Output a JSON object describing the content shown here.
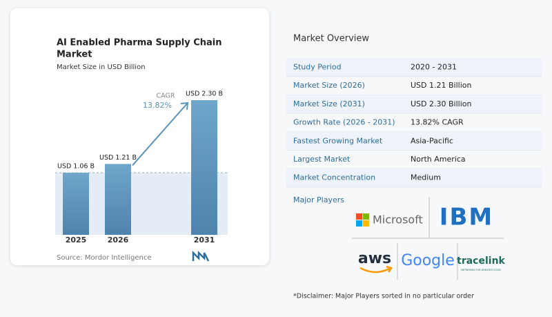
{
  "chart_data": {
    "type": "bar",
    "title": "AI Enabled Pharma Supply Chain Market",
    "subtitle": "Market Size in USD Billion",
    "categories": [
      "2025",
      "2026",
      "2031"
    ],
    "values": [
      1.06,
      1.21,
      2.3
    ],
    "value_labels": [
      "USD 1.06 B",
      "USD 1.21 B",
      "USD 2.30 B"
    ],
    "color": "#5a8fb8",
    "annotation": {
      "label": "CAGR",
      "value": "13.82%"
    },
    "source": "Source: Mordor Intelligence"
  },
  "overview": {
    "title": "Market Overview",
    "rows": [
      [
        "Study Period",
        "2020 - 2031"
      ],
      [
        "Market Size (2026)",
        "USD 1.21 Billion"
      ],
      [
        "Market Size (2031)",
        "USD 2.30 Billion"
      ],
      [
        "Growth Rate (2026 - 2031)",
        "13.82% CAGR"
      ],
      [
        "Fastest Growing Market",
        "Asia-Pacific"
      ],
      [
        "Largest Market",
        "North America"
      ],
      [
        "Market Concentration",
        "Medium"
      ]
    ]
  },
  "players": {
    "title": "Major Players",
    "logos": [
      "Microsoft",
      "IBM",
      "aws",
      "Google",
      "tracelink"
    ],
    "tracelink_tagline": "NETWORKS FOR GREATER GOOD",
    "disclaimer": "*Disclaimer: Major Players sorted in no particular order"
  }
}
